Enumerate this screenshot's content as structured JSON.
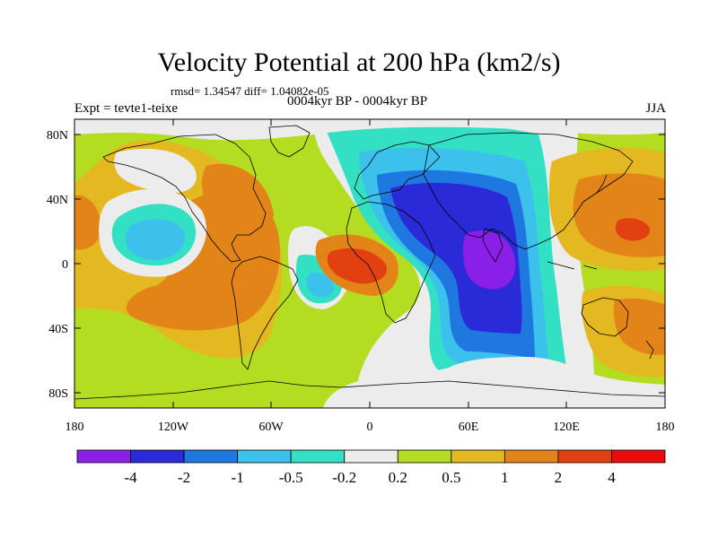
{
  "title": "Velocity Potential at 200 hPa (km2/s)",
  "stats": "rmsd= 1.34547  diff= 1.04082e-05",
  "experiment": "Expt = tevte1-teixe",
  "period": "0004kyr BP - 0004kyr BP",
  "season": "JJA",
  "lat_labels": [
    "80N",
    "40N",
    "0",
    "40S",
    "80S"
  ],
  "lon_labels": [
    "180",
    "120W",
    "60W",
    "0",
    "60E",
    "120E",
    "180"
  ],
  "colorbar": {
    "colors": [
      "#8a20e8",
      "#2a2ad8",
      "#1e78e0",
      "#3cc0ec",
      "#34e0c4",
      "#ececec",
      "#b4dc20",
      "#e4b820",
      "#e28418",
      "#e24010",
      "#e80c0c"
    ],
    "labels": [
      "-4",
      "-2",
      "-1",
      "-0.5",
      "-0.2",
      "0.2",
      "0.5",
      "1",
      "2",
      "4"
    ]
  },
  "palette": {
    "neutral": "#ececec",
    "pos1": "#b4dc20",
    "pos2": "#e4b820",
    "pos3": "#e28418",
    "pos4": "#e24010",
    "neg1": "#34e0c4",
    "neg2": "#3cc0ec",
    "neg3": "#1e78e0",
    "neg4": "#2a2ad8",
    "neg5": "#8a20e8"
  }
}
